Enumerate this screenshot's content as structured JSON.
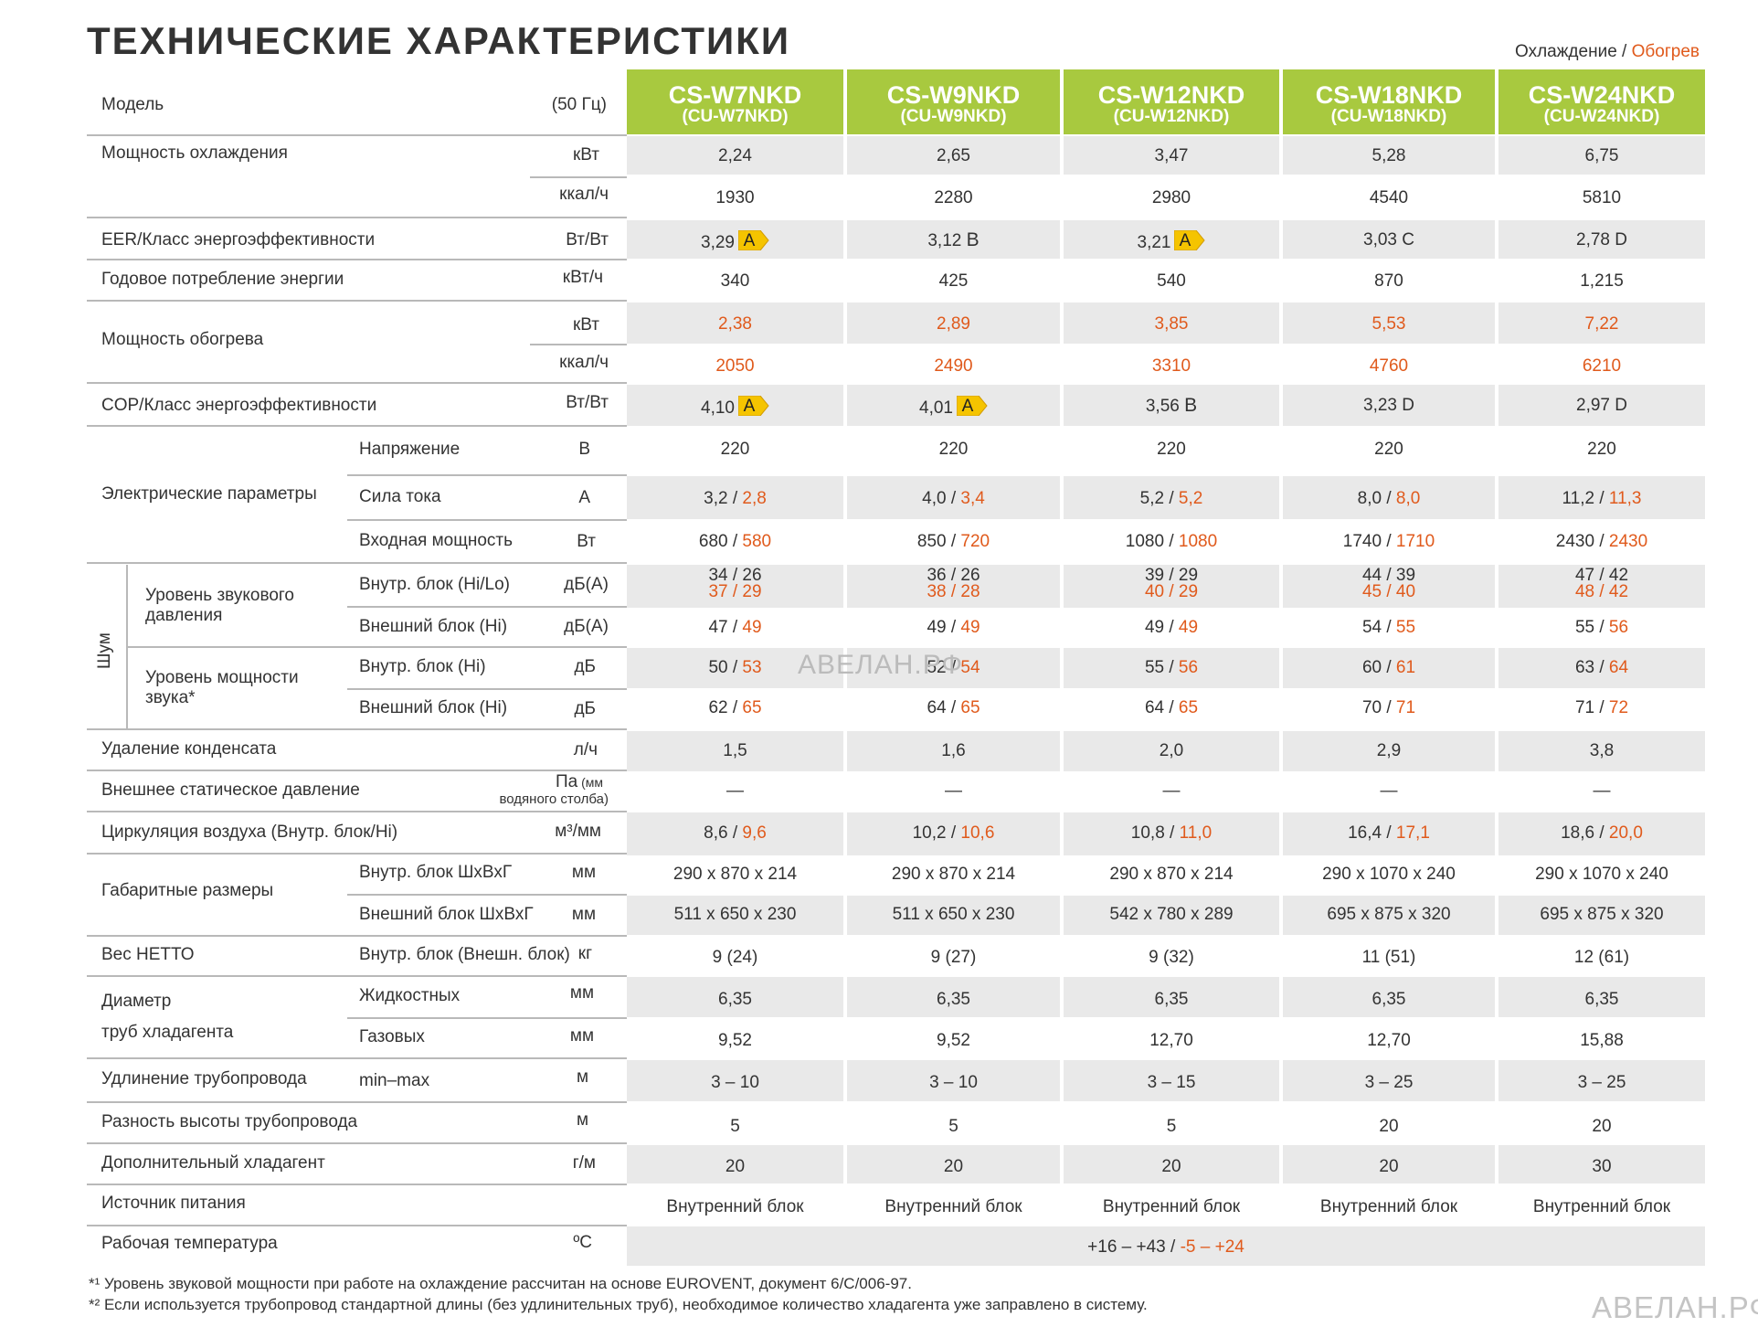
{
  "title": "ТЕХНИЧЕСКИЕ ХАРАКТЕРИСТИКИ",
  "legend": {
    "cool": "Охлаждение",
    "sep": " / ",
    "heat": "Обогрев"
  },
  "colors": {
    "green": "#a8c93f",
    "heat": "#e05a1c",
    "band": "#e9e9e9",
    "badge": "#f5c400"
  },
  "header": {
    "label": "Модель",
    "unit": "(50 Гц)"
  },
  "models": [
    {
      "model": "CS-W7NKD",
      "sub": "(CU-W7NKD)"
    },
    {
      "model": "CS-W9NKD",
      "sub": "(CU-W9NKD)"
    },
    {
      "model": "CS-W12NKD",
      "sub": "(CU-W12NKD)"
    },
    {
      "model": "CS-W18NKD",
      "sub": "(CU-W18NKD)"
    },
    {
      "model": "CS-W24NKD",
      "sub": "(CU-W24NKD)"
    }
  ],
  "labels": {
    "cooling": "Мощность охлаждения",
    "eer": "EER/Класс энергоэффективности",
    "annual": "Годовое потребление энергии",
    "heating": "Мощность обогрева",
    "cop": "COP/Класс энергоэффективности",
    "electric": "Электрические параметры",
    "voltage": "Напряжение",
    "current": "Сила тока",
    "input": "Входная мощность",
    "noise": "Шум",
    "spl": "Уровень звукового давления",
    "indoor_hilo": "Внутр. блок (Hi/Lo)",
    "outdoor_hi": "Внешний блок (Hi)",
    "pwl": "Уровень мощности звука*",
    "indoor_hi": "Внутр. блок  (Hi)",
    "outdoor_hi2": "Внешний блок (Hi)",
    "condensate": "Удаление конденсата",
    "static": "Внешнее статическое давление",
    "airflow": "Циркуляция воздуха (Внутр. блок/Hi)",
    "dims": "Габаритные размеры",
    "dims_in": "Внутр. блок   ШхВхГ",
    "dims_out": "Внешний блок  ШхВхГ",
    "weight": "Вес НЕТТО",
    "weight_sub": "Внутр. блок (Внешн. блок)",
    "pipe1": "Диаметр",
    "pipe2": "труб хладагента",
    "liquid": "Жидкостных",
    "gas": "Газовых",
    "piping": "Удлинение  трубопровода",
    "piping_sub": "min–max",
    "height": "Разность высоты трубопровода",
    "refrig": "Дополнительный хладагент",
    "power": "Источник питания",
    "temp": "Рабочая температура"
  },
  "units": {
    "kw": "кВт",
    "kcal": "ккал/ч",
    "wpw": "Вт/Вт",
    "kwh": "кВт/ч",
    "v": "В",
    "a": "А",
    "w": "Вт",
    "dba": "дБ(А)",
    "db": "дБ",
    "lh": "л/ч",
    "pa1": "Па",
    "pa1b": " (мм",
    "pa2": "водяного столба)",
    "m3": "м³/мм",
    "mm": "мм",
    "kg": "кг",
    "m": "м",
    "gm": "г/м",
    "c": "ºC"
  },
  "rows": {
    "cooling_kw": [
      "2,24",
      "2,65",
      "3,47",
      "5,28",
      "6,75"
    ],
    "cooling_kcal": [
      "1930",
      "2280",
      "2980",
      "4540",
      "5810"
    ],
    "eer_val": [
      "3,29",
      "3,12",
      "3,21",
      "3,03 C",
      "2,78 D"
    ],
    "eer_cls": [
      "A",
      "B",
      "A",
      "",
      ""
    ],
    "annual": [
      "340",
      "425",
      "540",
      "870",
      "1,215"
    ],
    "heating_kw": [
      "2,38",
      "2,89",
      "3,85",
      "5,53",
      "7,22"
    ],
    "heating_kcal": [
      "2050",
      "2490",
      "3310",
      "4760",
      "6210"
    ],
    "cop_val": [
      "4,10",
      "4,01",
      "3,56",
      "3,23 D",
      "2,97 D"
    ],
    "cop_cls": [
      "A",
      "A",
      "B",
      "",
      ""
    ],
    "voltage": [
      "220",
      "220",
      "220",
      "220",
      "220"
    ],
    "current_c": [
      "3,2",
      "4,0",
      "5,2",
      "8,0",
      "11,2"
    ],
    "current_h": [
      "2,8",
      "3,4",
      "5,2",
      "8,0",
      "11,3"
    ],
    "input_c": [
      "680",
      "850",
      "1080",
      "1740",
      "2430"
    ],
    "input_h": [
      "580",
      "720",
      "1080",
      "1710",
      "2430"
    ],
    "spl_in_c": [
      "34 / 26",
      "36 / 26",
      "39 / 29",
      "44 / 39",
      "47 / 42"
    ],
    "spl_in_h": [
      "37 / 29",
      "38 / 28",
      "40 / 29",
      "45 / 40",
      "48 / 42"
    ],
    "spl_out_c": [
      "47",
      "49",
      "49",
      "54",
      "55"
    ],
    "spl_out_h": [
      "49",
      "49",
      "49",
      "55",
      "56"
    ],
    "pwl_in_c": [
      "50",
      "52",
      "55",
      "60",
      "63"
    ],
    "pwl_in_h": [
      "53",
      "54",
      "56",
      "61",
      "64"
    ],
    "pwl_out_c": [
      "62",
      "64",
      "64",
      "70",
      "71"
    ],
    "pwl_out_h": [
      "65",
      "65",
      "65",
      "71",
      "72"
    ],
    "condensate": [
      "1,5",
      "1,6",
      "2,0",
      "2,9",
      "3,8"
    ],
    "static": [
      "—",
      "—",
      "—",
      "—",
      "—"
    ],
    "air_c": [
      "8,6",
      "10,2",
      "10,8",
      "16,4",
      "18,6"
    ],
    "air_h": [
      "9,6",
      "10,6",
      "11,0",
      "17,1",
      "20,0"
    ],
    "dims_in": [
      "290 x 870 x 214",
      "290 x 870 x 214",
      "290 x 870 x 214",
      "290 x 1070 x 240",
      "290 x 1070 x 240"
    ],
    "dims_out": [
      "511 x 650 x 230",
      "511 x 650 x 230",
      "542 x 780 x 289",
      "695 x 875 x 320",
      "695 x 875 x 320"
    ],
    "weight": [
      "9 (24)",
      "9 (27)",
      "9 (32)",
      "11 (51)",
      "12 (61)"
    ],
    "liquid": [
      "6,35",
      "6,35",
      "6,35",
      "6,35",
      "6,35"
    ],
    "gas": [
      "9,52",
      "9,52",
      "12,70",
      "12,70",
      "15,88"
    ],
    "piping": [
      "3 – 10",
      "3 – 10",
      "3 – 15",
      "3 – 25",
      "3 – 25"
    ],
    "height": [
      "5",
      "5",
      "5",
      "20",
      "20"
    ],
    "refrig": [
      "20",
      "20",
      "20",
      "20",
      "30"
    ],
    "power": [
      "Внутренний блок",
      "Внутренний блок",
      "Внутренний блок",
      "Внутренний блок",
      "Внутренний блок"
    ]
  },
  "temp_c": "+16 – +43 / ",
  "temp_h": "-5 – +24",
  "footnotes": {
    "f1_mark": "*¹",
    "f1": " Уровень звуковой мощности при работе на охлаждение рассчитан на основе EUROVENT, документ 6/С/006-97.",
    "f2_mark": "*²",
    "f2": " Если используется трубопровод стандартной длины (без удлинительных труб), необходимое количество хладагента уже заправлено в систему."
  },
  "watermark": "АВЕЛАН.РФ"
}
